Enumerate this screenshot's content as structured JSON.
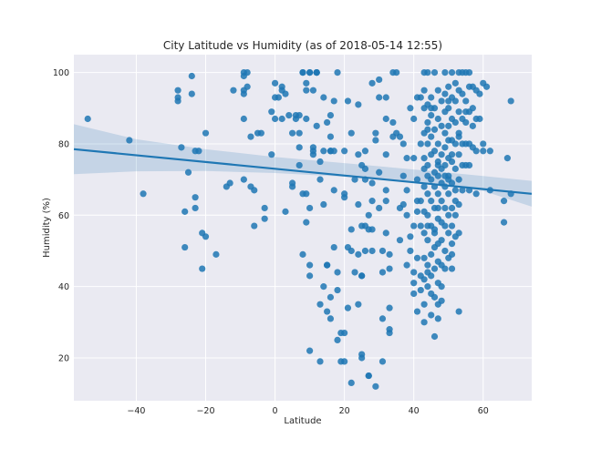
{
  "chart_data": {
    "type": "scatter",
    "title": "City Latitude vs Humidity (as of 2018-05-14 12:55)",
    "xlabel": "Latitude",
    "ylabel": "Humidity (%)",
    "xlim": [
      -58,
      74
    ],
    "ylim": [
      8,
      105
    ],
    "xticks": [
      -40,
      -20,
      0,
      20,
      40,
      60
    ],
    "yticks": [
      20,
      40,
      60,
      80,
      100
    ],
    "xtick_labels": [
      "−40",
      "−20",
      "0",
      "20",
      "40",
      "60"
    ],
    "ytick_labels": [
      "20",
      "40",
      "60",
      "80",
      "100"
    ],
    "grid": true,
    "style": "seaborn-darkgrid",
    "colors": {
      "background": "#eaeaf2",
      "grid": "#ffffff",
      "points": "#1f77b4",
      "regression_line": "#1f77b4",
      "confidence_band": "#1f77b4"
    },
    "regression": {
      "x": [
        -58,
        74
      ],
      "y": [
        78.5,
        66.0
      ]
    },
    "confidence_band": {
      "x": [
        -58,
        -40,
        -20,
        0,
        20,
        40,
        60,
        74
      ],
      "upper": [
        85.5,
        81.3,
        78.5,
        76.3,
        74.6,
        72.8,
        71.0,
        69.6
      ],
      "lower": [
        71.5,
        72.3,
        72.4,
        71.8,
        70.8,
        69.5,
        66.8,
        62.4
      ]
    },
    "points": [
      [
        -54,
        87
      ],
      [
        -42,
        81
      ],
      [
        -38,
        66
      ],
      [
        -28,
        92
      ],
      [
        -28,
        93
      ],
      [
        -28,
        95
      ],
      [
        -27,
        79
      ],
      [
        -26,
        51
      ],
      [
        -26,
        61
      ],
      [
        -25,
        72
      ],
      [
        -24,
        94
      ],
      [
        -24,
        99
      ],
      [
        -23,
        78
      ],
      [
        -23,
        65
      ],
      [
        -23,
        62
      ],
      [
        -22,
        78
      ],
      [
        -21,
        55
      ],
      [
        -21,
        45
      ],
      [
        -20,
        54
      ],
      [
        -20,
        83
      ],
      [
        -17,
        49
      ],
      [
        -14,
        68
      ],
      [
        -13,
        69
      ],
      [
        -12,
        95
      ],
      [
        -9,
        100
      ],
      [
        -9,
        99
      ],
      [
        -9,
        95
      ],
      [
        -9,
        94
      ],
      [
        -9,
        87
      ],
      [
        -9,
        70
      ],
      [
        -8,
        96
      ],
      [
        -8,
        100
      ],
      [
        -7,
        82
      ],
      [
        -7,
        68
      ],
      [
        -6,
        57
      ],
      [
        -6,
        67
      ],
      [
        -5,
        83
      ],
      [
        -4,
        83
      ],
      [
        -3,
        62
      ],
      [
        -3,
        59
      ],
      [
        -1,
        77
      ],
      [
        -1,
        89
      ],
      [
        0,
        97
      ],
      [
        0,
        93
      ],
      [
        0,
        87
      ],
      [
        1,
        93
      ],
      [
        2,
        96
      ],
      [
        2,
        95
      ],
      [
        2,
        87
      ],
      [
        3,
        61
      ],
      [
        3,
        94
      ],
      [
        4,
        88
      ],
      [
        5,
        83
      ],
      [
        5,
        69
      ],
      [
        5,
        68
      ],
      [
        6,
        88
      ],
      [
        6,
        87
      ],
      [
        7,
        88
      ],
      [
        7,
        83
      ],
      [
        7,
        79
      ],
      [
        7,
        74
      ],
      [
        8,
        49
      ],
      [
        8,
        66
      ],
      [
        8,
        100
      ],
      [
        8,
        100
      ],
      [
        9,
        97
      ],
      [
        9,
        95
      ],
      [
        9,
        87
      ],
      [
        9,
        66
      ],
      [
        9,
        58
      ],
      [
        10,
        46
      ],
      [
        10,
        43
      ],
      [
        10,
        22
      ],
      [
        10,
        62
      ],
      [
        10,
        100
      ],
      [
        10,
        100
      ],
      [
        11,
        77
      ],
      [
        11,
        78
      ],
      [
        11,
        79
      ],
      [
        11,
        95
      ],
      [
        12,
        100
      ],
      [
        12,
        100
      ],
      [
        12,
        100
      ],
      [
        12,
        85
      ],
      [
        13,
        75
      ],
      [
        13,
        70
      ],
      [
        13,
        35
      ],
      [
        13,
        19
      ],
      [
        14,
        78
      ],
      [
        14,
        93
      ],
      [
        14,
        63
      ],
      [
        14,
        40
      ],
      [
        15,
        86
      ],
      [
        15,
        46
      ],
      [
        15,
        46
      ],
      [
        15,
        33
      ],
      [
        16,
        88
      ],
      [
        16,
        82
      ],
      [
        16,
        78
      ],
      [
        16,
        78
      ],
      [
        16,
        37
      ],
      [
        16,
        31
      ],
      [
        17,
        51
      ],
      [
        17,
        78
      ],
      [
        17,
        92
      ],
      [
        17,
        67
      ],
      [
        18,
        100
      ],
      [
        18,
        44
      ],
      [
        18,
        39
      ],
      [
        18,
        25
      ],
      [
        19,
        27
      ],
      [
        19,
        19
      ],
      [
        20,
        65
      ],
      [
        20,
        66
      ],
      [
        20,
        78
      ],
      [
        20,
        27
      ],
      [
        20,
        19
      ],
      [
        21,
        92
      ],
      [
        21,
        51
      ],
      [
        21,
        34
      ],
      [
        22,
        83
      ],
      [
        22,
        50
      ],
      [
        22,
        56
      ],
      [
        22,
        13
      ],
      [
        23,
        70
      ],
      [
        23,
        44
      ],
      [
        24,
        77
      ],
      [
        24,
        63
      ],
      [
        24,
        91
      ],
      [
        24,
        49
      ],
      [
        24,
        35
      ],
      [
        25,
        74
      ],
      [
        25,
        57
      ],
      [
        25,
        43
      ],
      [
        25,
        43
      ],
      [
        25,
        20
      ],
      [
        25,
        21
      ],
      [
        26,
        78
      ],
      [
        26,
        70
      ],
      [
        26,
        73
      ],
      [
        26,
        57
      ],
      [
        26,
        50
      ],
      [
        27,
        15
      ],
      [
        27,
        15
      ],
      [
        27,
        60
      ],
      [
        27,
        56
      ],
      [
        28,
        97
      ],
      [
        28,
        69
      ],
      [
        28,
        64
      ],
      [
        28,
        56
      ],
      [
        28,
        50
      ],
      [
        29,
        12
      ],
      [
        29,
        83
      ],
      [
        29,
        81
      ],
      [
        30,
        98
      ],
      [
        30,
        93
      ],
      [
        30,
        72
      ],
      [
        30,
        62
      ],
      [
        31,
        50
      ],
      [
        31,
        44
      ],
      [
        31,
        31
      ],
      [
        31,
        19
      ],
      [
        32,
        55
      ],
      [
        32,
        67
      ],
      [
        32,
        64
      ],
      [
        32,
        77
      ],
      [
        32,
        87
      ],
      [
        32,
        93
      ],
      [
        33,
        45
      ],
      [
        33,
        49
      ],
      [
        33,
        27
      ],
      [
        33,
        28
      ],
      [
        33,
        34
      ],
      [
        34,
        86
      ],
      [
        34,
        82
      ],
      [
        34,
        100
      ],
      [
        35,
        100
      ],
      [
        35,
        83
      ],
      [
        36,
        82
      ],
      [
        36,
        62
      ],
      [
        36,
        53
      ],
      [
        37,
        80
      ],
      [
        37,
        71
      ],
      [
        37,
        63
      ],
      [
        38,
        60
      ],
      [
        38,
        46
      ],
      [
        38,
        67
      ],
      [
        38,
        76
      ],
      [
        39,
        90
      ],
      [
        39,
        54
      ],
      [
        39,
        50
      ],
      [
        40,
        87
      ],
      [
        40,
        76
      ],
      [
        40,
        57
      ],
      [
        40,
        41
      ],
      [
        40,
        38
      ],
      [
        40,
        44
      ],
      [
        41,
        93
      ],
      [
        41,
        70
      ],
      [
        41,
        64
      ],
      [
        41,
        61
      ],
      [
        41,
        33
      ],
      [
        41,
        48
      ],
      [
        42,
        93
      ],
      [
        42,
        80
      ],
      [
        42,
        64
      ],
      [
        42,
        57
      ],
      [
        42,
        43
      ],
      [
        42,
        39
      ],
      [
        43,
        100
      ],
      [
        43,
        95
      ],
      [
        43,
        90
      ],
      [
        43,
        83
      ],
      [
        43,
        76
      ],
      [
        43,
        73
      ],
      [
        43,
        68
      ],
      [
        43,
        61
      ],
      [
        43,
        55
      ],
      [
        43,
        42
      ],
      [
        43,
        35
      ],
      [
        43,
        30
      ],
      [
        44,
        100
      ],
      [
        44,
        91
      ],
      [
        44,
        86
      ],
      [
        44,
        80
      ],
      [
        44,
        74
      ],
      [
        44,
        71
      ],
      [
        44,
        66
      ],
      [
        44,
        60
      ],
      [
        44,
        53
      ],
      [
        44,
        46
      ],
      [
        44,
        44
      ],
      [
        44,
        40
      ],
      [
        45,
        93
      ],
      [
        45,
        88
      ],
      [
        45,
        82
      ],
      [
        45,
        77
      ],
      [
        45,
        70
      ],
      [
        45,
        64
      ],
      [
        45,
        57
      ],
      [
        45,
        49
      ],
      [
        45,
        43
      ],
      [
        45,
        38
      ],
      [
        45,
        32
      ],
      [
        46,
        90
      ],
      [
        46,
        84
      ],
      [
        46,
        78
      ],
      [
        46,
        72
      ],
      [
        46,
        68
      ],
      [
        46,
        62
      ],
      [
        46,
        56
      ],
      [
        46,
        51
      ],
      [
        46,
        45
      ],
      [
        46,
        37
      ],
      [
        46,
        26
      ],
      [
        47,
        95
      ],
      [
        47,
        87
      ],
      [
        47,
        80
      ],
      [
        47,
        75
      ],
      [
        47,
        71
      ],
      [
        47,
        66
      ],
      [
        47,
        59
      ],
      [
        47,
        52
      ],
      [
        47,
        47
      ],
      [
        47,
        41
      ],
      [
        47,
        35
      ],
      [
        47,
        31
      ],
      [
        48,
        92
      ],
      [
        48,
        85
      ],
      [
        48,
        77
      ],
      [
        48,
        73
      ],
      [
        48,
        69
      ],
      [
        48,
        64
      ],
      [
        48,
        58
      ],
      [
        48,
        53
      ],
      [
        48,
        46
      ],
      [
        48,
        40
      ],
      [
        49,
        100
      ],
      [
        49,
        94
      ],
      [
        49,
        89
      ],
      [
        49,
        83
      ],
      [
        49,
        79
      ],
      [
        49,
        74
      ],
      [
        49,
        68
      ],
      [
        49,
        62
      ],
      [
        49,
        57
      ],
      [
        49,
        50
      ],
      [
        49,
        45
      ],
      [
        50,
        96
      ],
      [
        50,
        90
      ],
      [
        50,
        85
      ],
      [
        50,
        81
      ],
      [
        50,
        76
      ],
      [
        50,
        71
      ],
      [
        50,
        66
      ],
      [
        50,
        60
      ],
      [
        50,
        55
      ],
      [
        50,
        48
      ],
      [
        51,
        100
      ],
      [
        51,
        93
      ],
      [
        51,
        87
      ],
      [
        51,
        81
      ],
      [
        51,
        75
      ],
      [
        51,
        69
      ],
      [
        51,
        62
      ],
      [
        51,
        57
      ],
      [
        51,
        52
      ],
      [
        51,
        45
      ],
      [
        52,
        97
      ],
      [
        52,
        92
      ],
      [
        52,
        86
      ],
      [
        52,
        80
      ],
      [
        52,
        73
      ],
      [
        52,
        67
      ],
      [
        52,
        60
      ],
      [
        52,
        54
      ],
      [
        53,
        100
      ],
      [
        53,
        95
      ],
      [
        53,
        89
      ],
      [
        53,
        83
      ],
      [
        53,
        77
      ],
      [
        53,
        70
      ],
      [
        53,
        63
      ],
      [
        53,
        55
      ],
      [
        53,
        33
      ],
      [
        54,
        100
      ],
      [
        54,
        94
      ],
      [
        54,
        87
      ],
      [
        54,
        80
      ],
      [
        54,
        74
      ],
      [
        54,
        67
      ],
      [
        55,
        100
      ],
      [
        55,
        92
      ],
      [
        55,
        86
      ],
      [
        55,
        80
      ],
      [
        55,
        74
      ],
      [
        56,
        100
      ],
      [
        56,
        96
      ],
      [
        56,
        89
      ],
      [
        56,
        80
      ],
      [
        56,
        74
      ],
      [
        56,
        67
      ],
      [
        57,
        96
      ],
      [
        57,
        90
      ],
      [
        57,
        85
      ],
      [
        57,
        79
      ],
      [
        58,
        95
      ],
      [
        58,
        87
      ],
      [
        58,
        78
      ],
      [
        58,
        66
      ],
      [
        59,
        94
      ],
      [
        59,
        87
      ],
      [
        60,
        80
      ],
      [
        60,
        78
      ],
      [
        60,
        97
      ],
      [
        61,
        96
      ],
      [
        62,
        78
      ],
      [
        62,
        67
      ],
      [
        66,
        64
      ],
      [
        66,
        58
      ],
      [
        67,
        76
      ],
      [
        68,
        66
      ],
      [
        68,
        92
      ],
      [
        46,
        100
      ],
      [
        51,
        49
      ],
      [
        44,
        57
      ],
      [
        47,
        74
      ],
      [
        50,
        92
      ],
      [
        53,
        82
      ],
      [
        48,
        36
      ],
      [
        45,
        90
      ],
      [
        52,
        64
      ],
      [
        49,
        71
      ],
      [
        43,
        48
      ],
      [
        55,
        89
      ],
      [
        47,
        62
      ],
      [
        51,
        77
      ],
      [
        44,
        84
      ],
      [
        50,
        70
      ],
      [
        46,
        55
      ]
    ]
  }
}
